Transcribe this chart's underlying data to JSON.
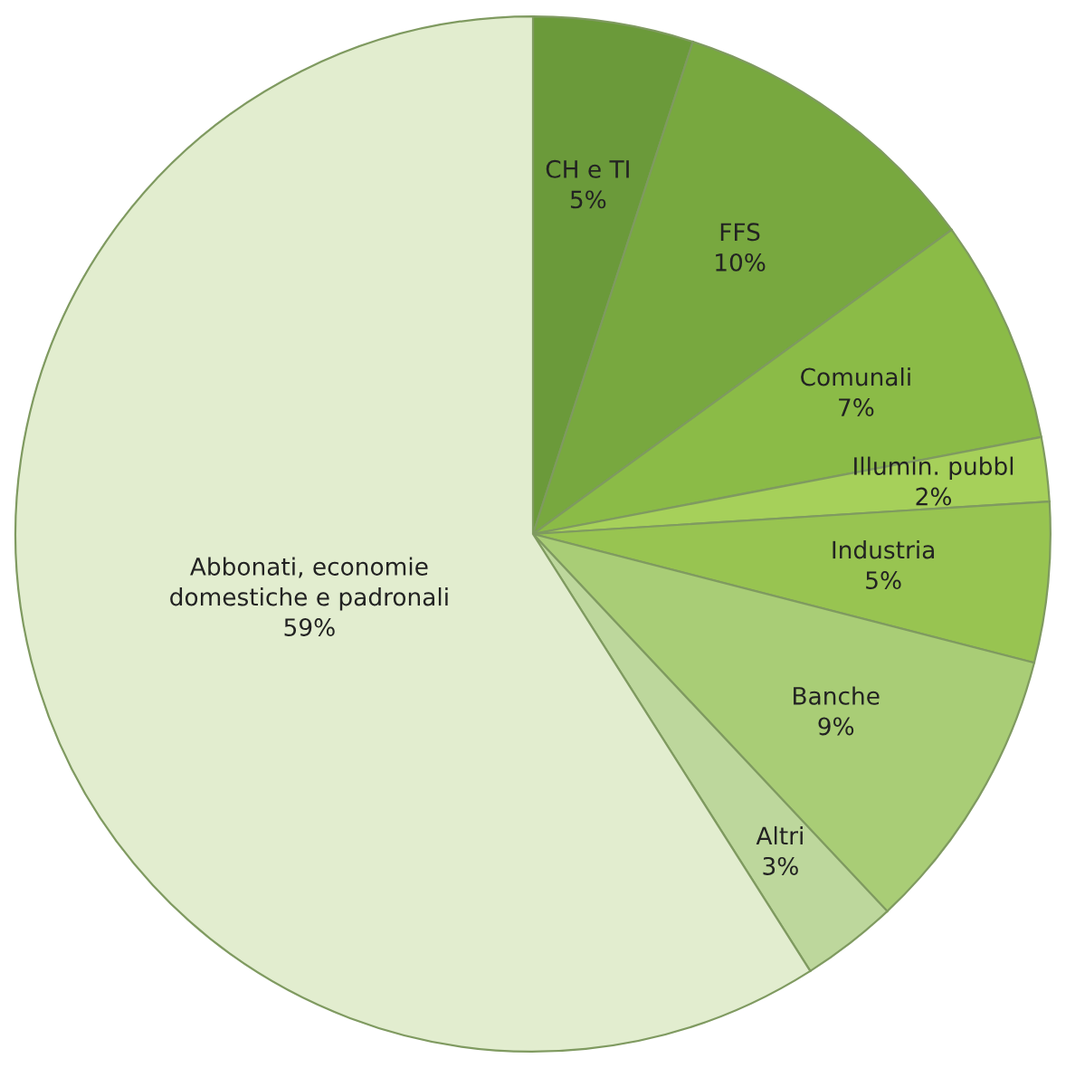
{
  "chart_data": {
    "type": "pie",
    "categories": [
      "CH e TI",
      "FFS",
      "Comunali",
      "Illumin. pubbl",
      "Industria",
      "Banche",
      "Altri",
      "Abbonati, economie\ndomestiche e padronali"
    ],
    "values": [
      5,
      10,
      7,
      2,
      5,
      9,
      3,
      59
    ],
    "colors": [
      "#6b9a3a",
      "#78a83f",
      "#8bbb47",
      "#a6d05a",
      "#98c451",
      "#a9cd76",
      "#bdd79c",
      "#e2edcf"
    ],
    "value_labels": [
      "5%",
      "10%",
      "7%",
      "2%",
      "5%",
      "9%",
      "3%",
      "59%"
    ],
    "legend": false
  }
}
